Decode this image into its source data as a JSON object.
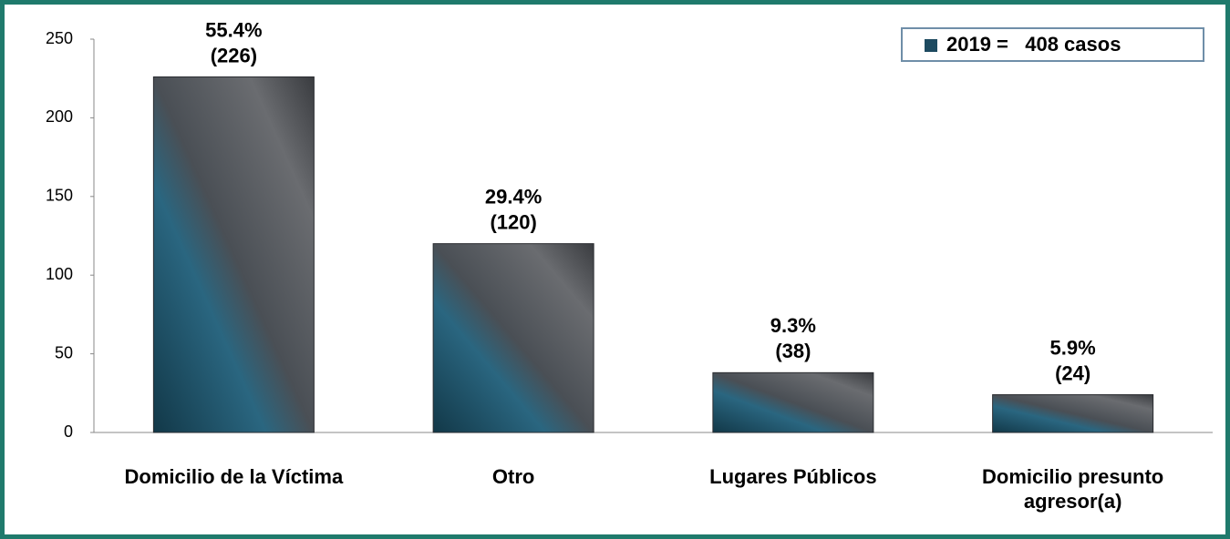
{
  "chart_data": {
    "type": "bar",
    "categories": [
      "Domicilio de la Víctima",
      "Otro",
      "Lugares Públicos",
      "Domicilio presunto agresor(a)"
    ],
    "series": [
      {
        "name": "2019 =   408 casos",
        "color": "#1d4a60",
        "values": [
          226,
          120,
          38,
          24
        ],
        "value_labels": [
          "(226)",
          "(120)",
          "(38)",
          "(24)"
        ],
        "share_labels": [
          "55.4%",
          "29.4%",
          "9.3%",
          "5.9%"
        ]
      }
    ],
    "ylim": [
      0,
      250
    ],
    "yticks": [
      0,
      50,
      100,
      150,
      200,
      250
    ],
    "legend": "top-right"
  }
}
